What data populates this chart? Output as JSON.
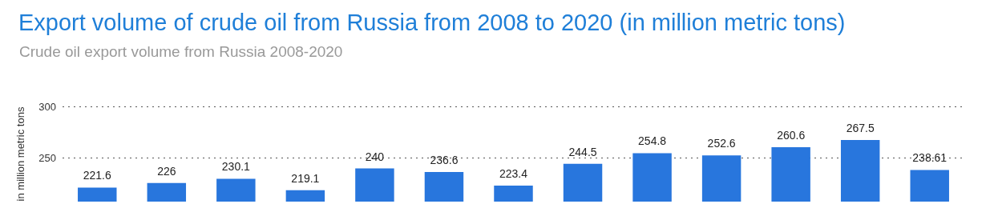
{
  "chart_data": {
    "type": "bar",
    "title": "Export volume of crude oil from Russia from 2008 to 2020 (in million metric tons)",
    "subtitle": "Crude oil export volume from Russia 2008-2020",
    "ylabel": "in million metric tons",
    "categories": [
      null,
      null,
      null,
      null,
      null,
      null,
      null,
      null,
      null,
      null,
      null,
      null,
      null
    ],
    "values": [
      221.6,
      226,
      230.1,
      219.1,
      240,
      236.6,
      223.4,
      244.5,
      254.8,
      252.6,
      260.6,
      267.5,
      238.61
    ],
    "color": "#2876dd",
    "ylim": [
      208,
      300
    ],
    "yticks": [
      250,
      300
    ],
    "grid": "y",
    "data_labels": true
  }
}
